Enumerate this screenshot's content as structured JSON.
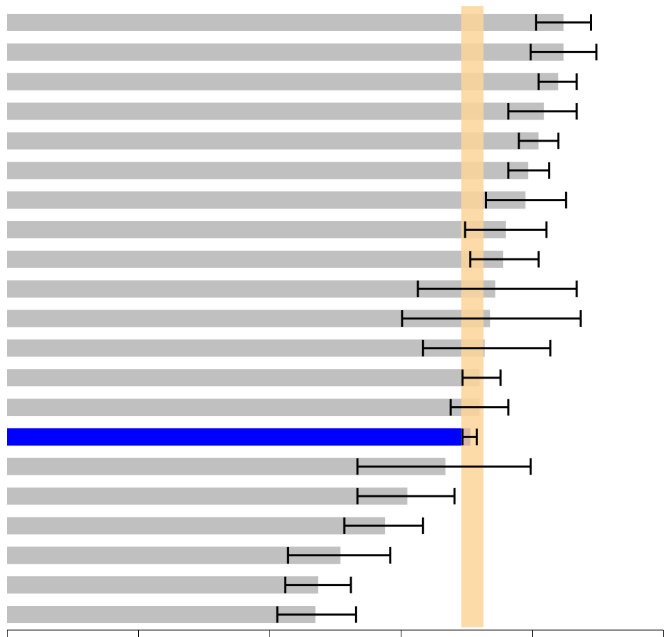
{
  "chart_data": {
    "type": "bar",
    "orientation": "horizontal",
    "title": "",
    "xlabel": "",
    "ylabel": "",
    "xlim": [
      0,
      5
    ],
    "grid": false,
    "legend": "none",
    "highlight_band": {
      "from": 3.46,
      "to": 3.63,
      "color": "#fdd59a"
    },
    "colors": {
      "default_bar": "#c0c0c0",
      "highlight_bar": "#0000ff",
      "error_bar": "#000000"
    },
    "bars": [
      {
        "value": 4.24,
        "err_low": 4.03,
        "err_high": 4.45,
        "highlight": false
      },
      {
        "value": 4.24,
        "err_low": 3.99,
        "err_high": 4.49,
        "highlight": false
      },
      {
        "value": 4.2,
        "err_low": 4.05,
        "err_high": 4.34,
        "highlight": false
      },
      {
        "value": 4.09,
        "err_low": 3.82,
        "err_high": 4.34,
        "highlight": false
      },
      {
        "value": 4.05,
        "err_low": 3.9,
        "err_high": 4.2,
        "highlight": false
      },
      {
        "value": 3.97,
        "err_low": 3.82,
        "err_high": 4.13,
        "highlight": false
      },
      {
        "value": 3.95,
        "err_low": 3.65,
        "err_high": 4.26,
        "highlight": false
      },
      {
        "value": 3.8,
        "err_low": 3.49,
        "err_high": 4.11,
        "highlight": false
      },
      {
        "value": 3.78,
        "err_low": 3.53,
        "err_high": 4.05,
        "highlight": false
      },
      {
        "value": 3.72,
        "err_low": 3.13,
        "err_high": 4.34,
        "highlight": false
      },
      {
        "value": 3.68,
        "err_low": 3.01,
        "err_high": 4.37,
        "highlight": false
      },
      {
        "value": 3.64,
        "err_low": 3.17,
        "err_high": 4.14,
        "highlight": false
      },
      {
        "value": 3.6,
        "err_low": 3.47,
        "err_high": 3.76,
        "highlight": false
      },
      {
        "value": 3.6,
        "err_low": 3.38,
        "err_high": 3.82,
        "highlight": false
      },
      {
        "value": 3.53,
        "err_low": 3.47,
        "err_high": 3.58,
        "highlight": true
      },
      {
        "value": 3.34,
        "err_low": 2.67,
        "err_high": 3.99,
        "highlight": false
      },
      {
        "value": 3.05,
        "err_low": 2.67,
        "err_high": 3.41,
        "highlight": false
      },
      {
        "value": 2.88,
        "err_low": 2.57,
        "err_high": 3.17,
        "highlight": false
      },
      {
        "value": 2.54,
        "err_low": 2.14,
        "err_high": 2.92,
        "highlight": false
      },
      {
        "value": 2.37,
        "err_low": 2.12,
        "err_high": 2.62,
        "highlight": false
      },
      {
        "value": 2.35,
        "err_low": 2.06,
        "err_high": 2.66,
        "highlight": false
      }
    ],
    "x_ticks": [
      0,
      1,
      2,
      3,
      4,
      5
    ]
  }
}
